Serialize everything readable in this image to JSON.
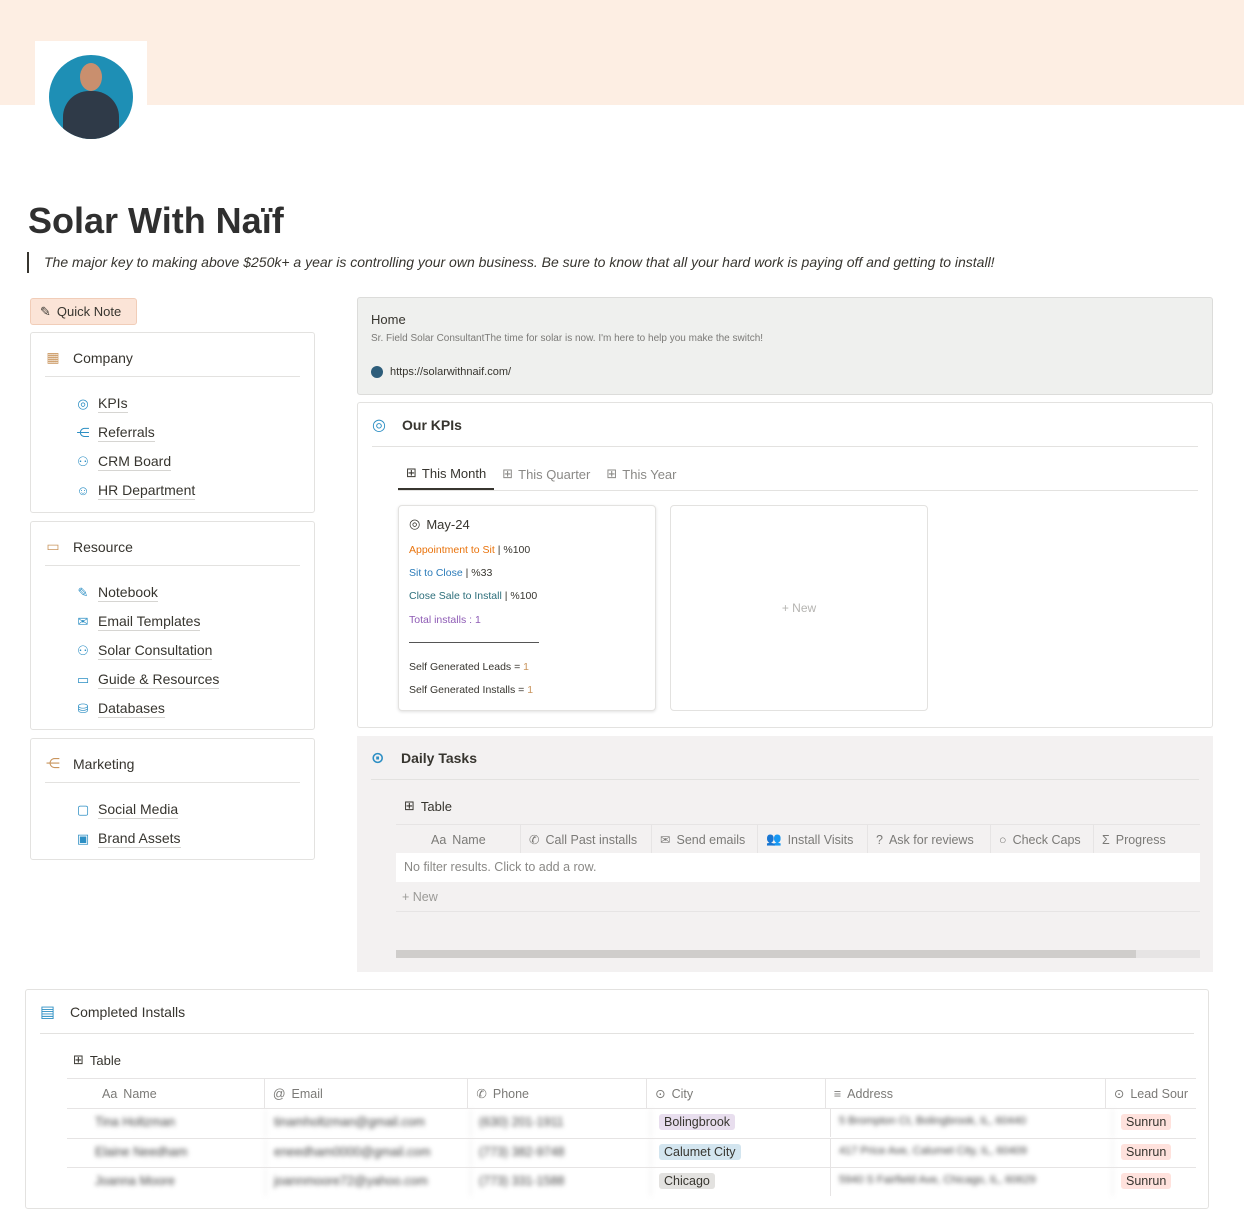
{
  "page": {
    "title": "Solar With Naïf",
    "quote": "The major key to making above $250k+ a year is controlling your own business. Be sure to know that all your hard work is paying off and getting to install!"
  },
  "quick_note": "Quick Note",
  "sidebar": {
    "company": {
      "title": "Company",
      "items": [
        "KPIs",
        "Referrals",
        "CRM Board",
        "HR Department"
      ]
    },
    "resource": {
      "title": "Resource",
      "items": [
        "Notebook",
        "Email Templates",
        "Solar Consultation",
        "Guide & Resources",
        "Databases"
      ]
    },
    "marketing": {
      "title": "Marketing",
      "items": [
        "Social Media",
        "Brand Assets"
      ]
    }
  },
  "bookmark": {
    "title": "Home",
    "description": "Sr. Field Solar ConsultantThe time for solar is now. I'm here to help you make the switch!",
    "url": "https://solarwithnaif.com/"
  },
  "kpis": {
    "title": "Our KPIs",
    "tabs": [
      "This Month",
      "This Quarter",
      "This Year"
    ],
    "card": {
      "title": "May-24",
      "appt_label": "Appointment to Sit",
      "appt_value": "| %100",
      "sit_label": "Sit to Close",
      "sit_value": "| %33",
      "close_label": "Close Sale to Install",
      "close_value": "| %100",
      "total_label": "Total installs :",
      "total_value": "1",
      "leads_label": "Self Generated Leads =",
      "leads_value": "1",
      "installs_label": "Self Generated Installs =",
      "installs_value": "1"
    },
    "new_label": "New"
  },
  "daily": {
    "title": "Daily Tasks",
    "view": "Table",
    "columns": [
      "Name",
      "Call Past installs",
      "Send emails",
      "Install Visits",
      "Ask for reviews",
      "Check Caps",
      "Progress"
    ],
    "empty": "No filter results. Click to add a row.",
    "new_label": "New"
  },
  "completed": {
    "title": "Completed Installs",
    "view": "Table",
    "columns": [
      "Name",
      "Email",
      "Phone",
      "City",
      "Address",
      "Lead Sour"
    ],
    "rows": [
      {
        "name": "Tina Holtzman",
        "email": "tinamholtzman@gmail.com",
        "phone": "(630) 201-1911",
        "city": "Bolingbrook",
        "address": "5 Brompton Ct, Bolingbrook, IL, 60440",
        "source": "Sunrun"
      },
      {
        "name": "Elaine Needham",
        "email": "eneedham0000@gmail.com",
        "phone": "(773) 382-9748",
        "city": "Calumet City",
        "address": "417 Price Ave, Calumet City, IL, 60409",
        "source": "Sunrun"
      },
      {
        "name": "Joanna Moore",
        "email": "joannmoore72@yahoo.com",
        "phone": "(773) 331-1588",
        "city": "Chicago",
        "address": "5940 S Fairfield Ave, Chicago, IL, 60629",
        "source": "Sunrun"
      }
    ]
  },
  "colors": {
    "banner": "#fdeee3",
    "accent": "#2d8fc4",
    "appt": "#e9730c",
    "sit": "#2b7bb9",
    "close": "#2c6e7a",
    "total": "#8e5bb5",
    "bolingbrook": "#e8deee",
    "calumet": "#d3e5ef",
    "chicago": "#e3e2e0",
    "sunrun": "#ffe2dd"
  }
}
